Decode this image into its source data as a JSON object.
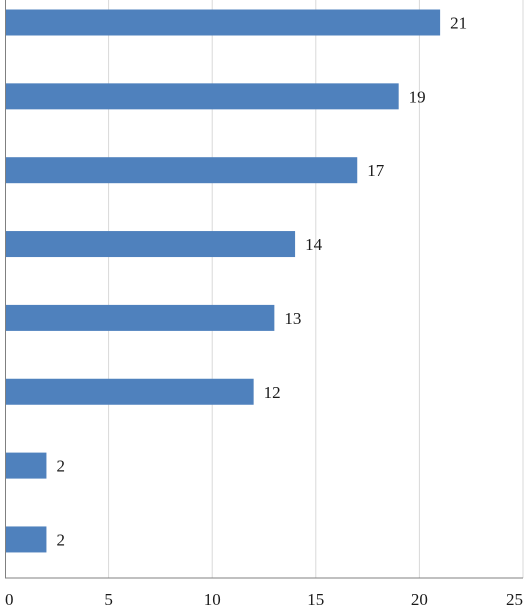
{
  "chart_data": {
    "type": "bar",
    "orientation": "horizontal",
    "title": "",
    "xlabel": "",
    "ylabel": "",
    "xlim": [
      0,
      25
    ],
    "x_ticks": [
      0,
      5,
      10,
      15,
      20,
      25
    ],
    "grid": "vertical",
    "legend": "none",
    "bar_color": "#4f81bd",
    "series": [
      {
        "values": [
          21,
          19,
          17,
          14,
          13,
          12,
          2,
          2
        ]
      }
    ]
  }
}
